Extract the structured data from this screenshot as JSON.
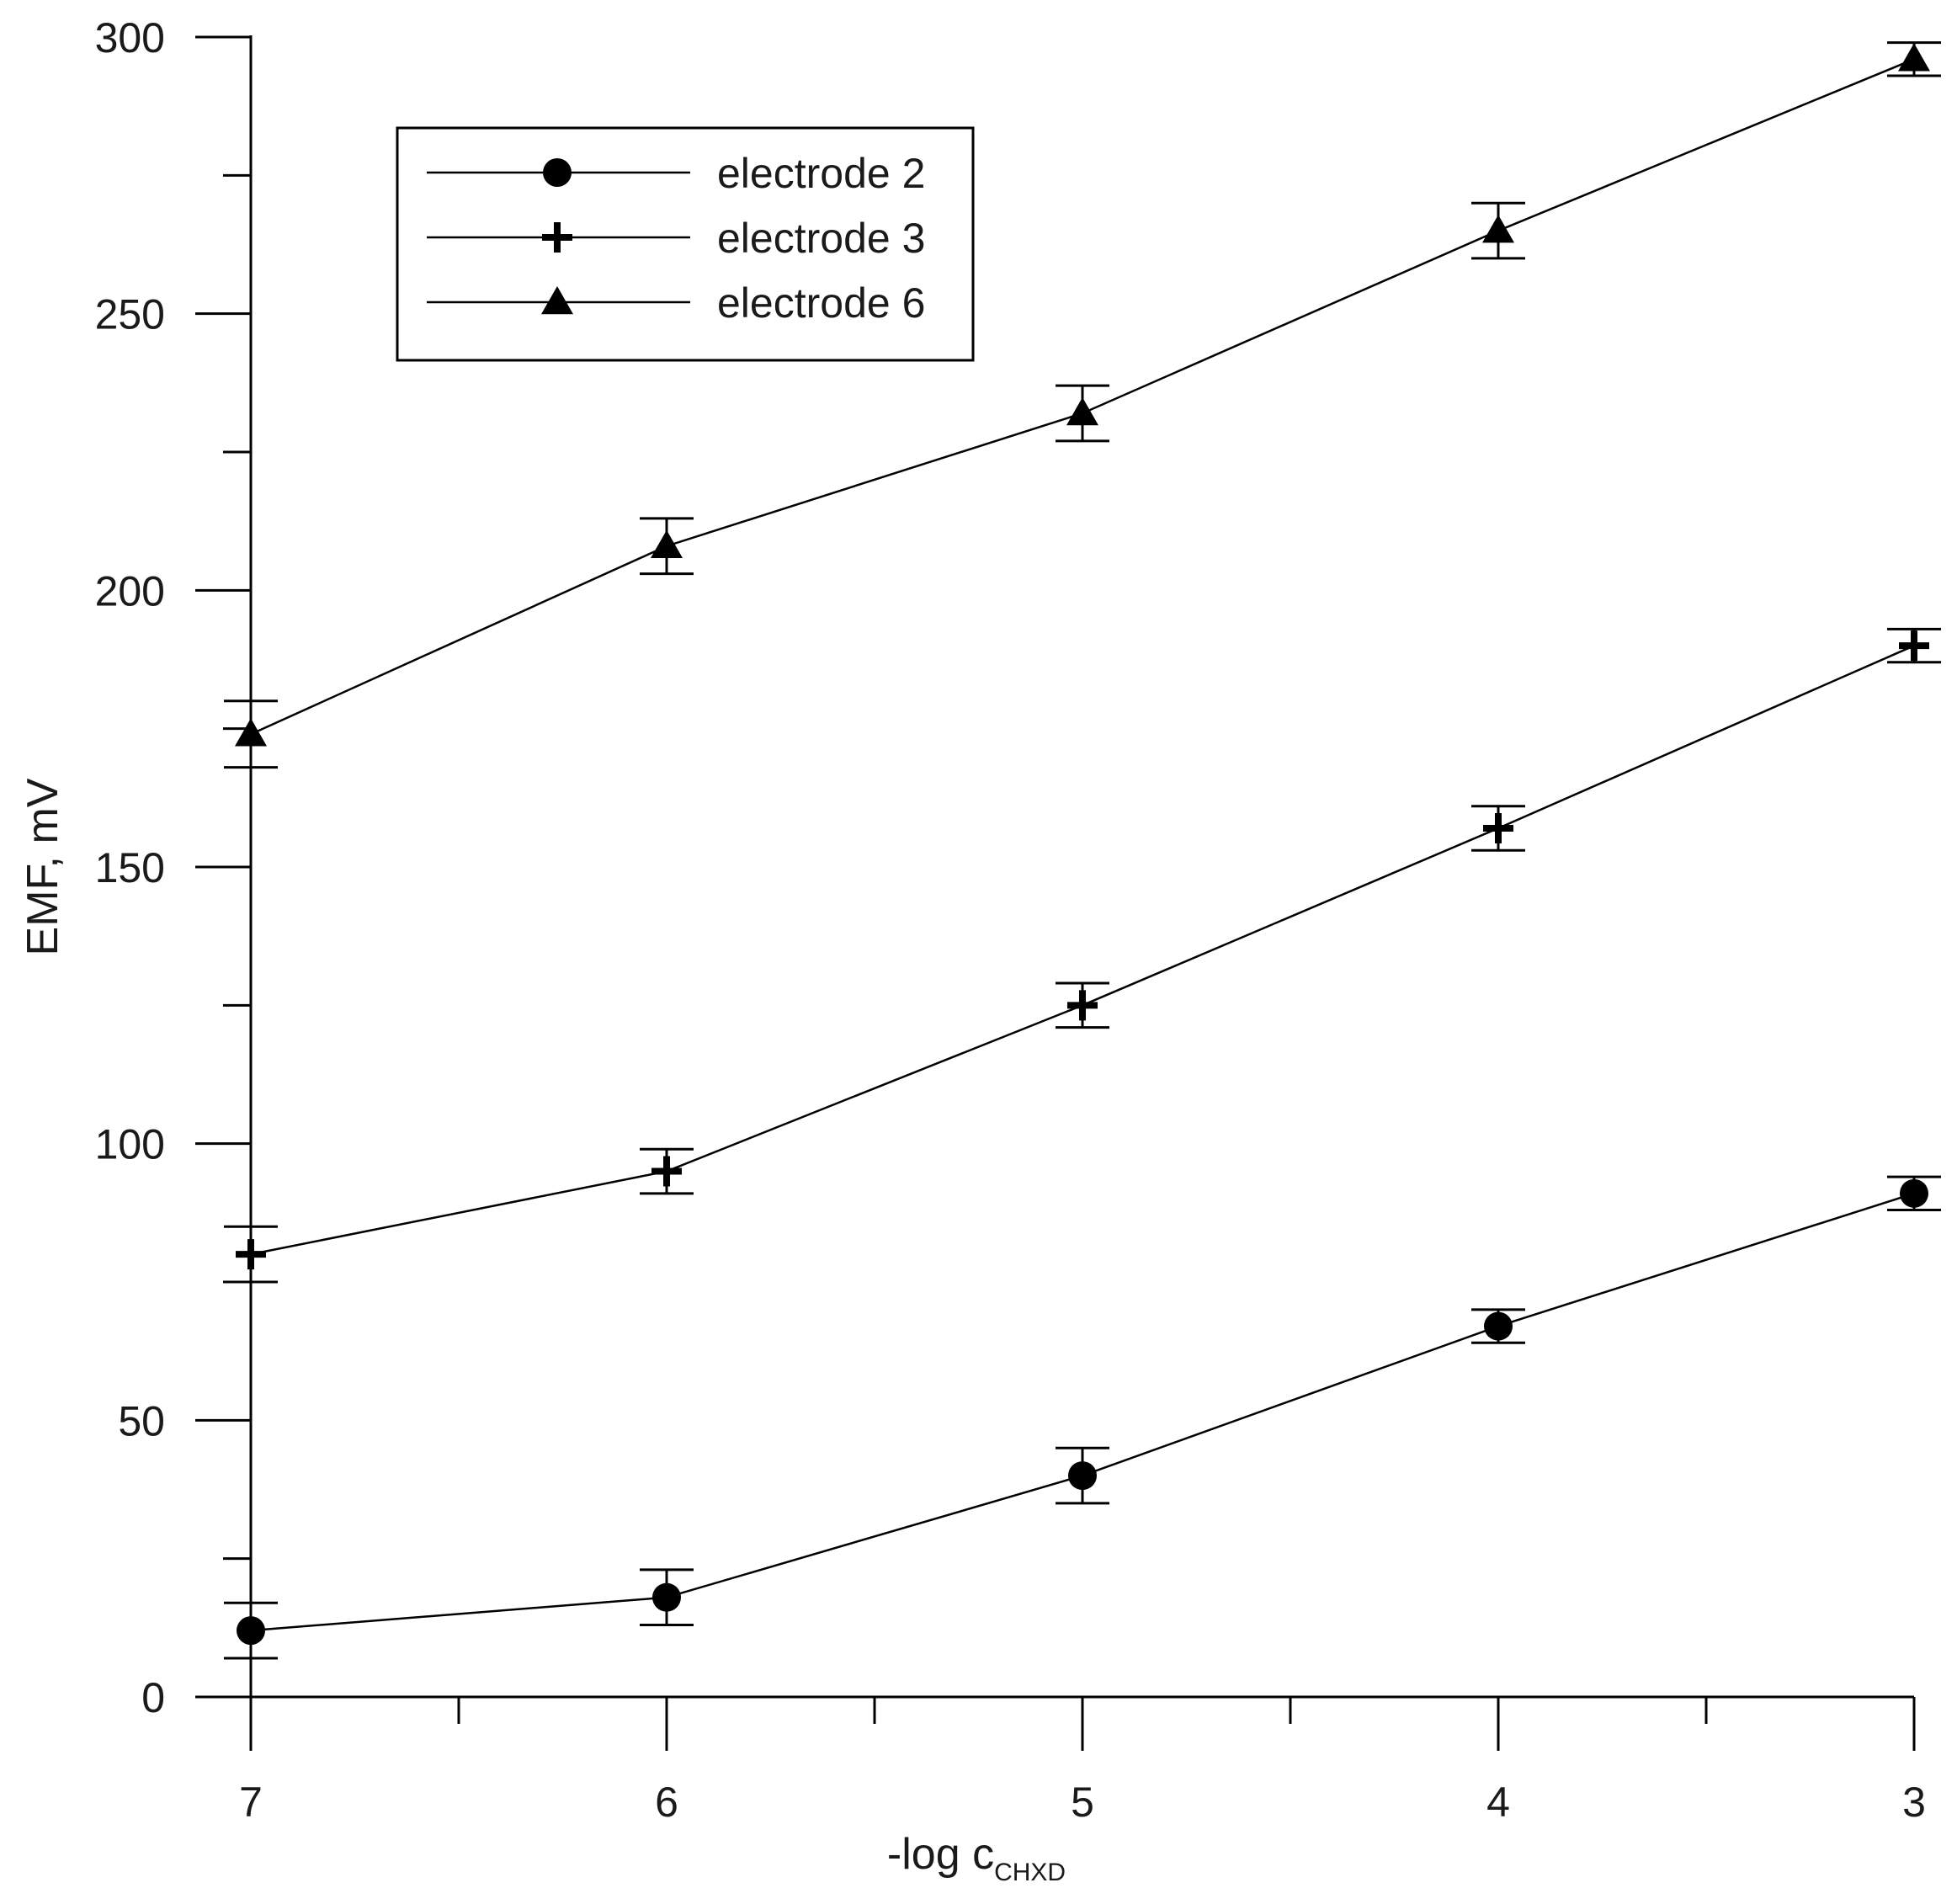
{
  "chart_data": {
    "type": "line",
    "title": "",
    "xlabel_main": "-log c",
    "xlabel_sub": "CHXD",
    "ylabel": "EMF, mV",
    "x": [
      7,
      6,
      5,
      4,
      3
    ],
    "xlim": [
      7,
      3
    ],
    "ylim": [
      0,
      300
    ],
    "x_ticks": [
      7,
      6,
      5,
      4,
      3
    ],
    "x_tick_labels": [
      "7",
      "6",
      "5",
      "4",
      "3"
    ],
    "x_minor_ticks": [
      6.5,
      5.5,
      4.5,
      3.5
    ],
    "y_ticks": [
      0,
      50,
      100,
      150,
      200,
      250,
      300
    ],
    "y_tick_labels": [
      "0",
      "50",
      "100",
      "150",
      "200",
      "250",
      "300"
    ],
    "y_minor_ticks": [
      25,
      75,
      125,
      175,
      225,
      275
    ],
    "grid": false,
    "legend_position": "top-left",
    "series": [
      {
        "name": "electrode 2",
        "marker": "circle",
        "values": [
          12,
          18,
          40,
          67,
          91
        ],
        "errors": [
          5,
          5,
          5,
          3,
          3
        ]
      },
      {
        "name": "electrode 3",
        "marker": "plus",
        "values": [
          80,
          95,
          125,
          157,
          190
        ],
        "errors": [
          5,
          4,
          4,
          4,
          3
        ]
      },
      {
        "name": "electrode 6",
        "marker": "triangle",
        "values": [
          174,
          208,
          232,
          265,
          296
        ],
        "errors": [
          6,
          5,
          5,
          5,
          3
        ]
      }
    ],
    "colors": {
      "line": "#000000",
      "marker": "#000000"
    }
  }
}
